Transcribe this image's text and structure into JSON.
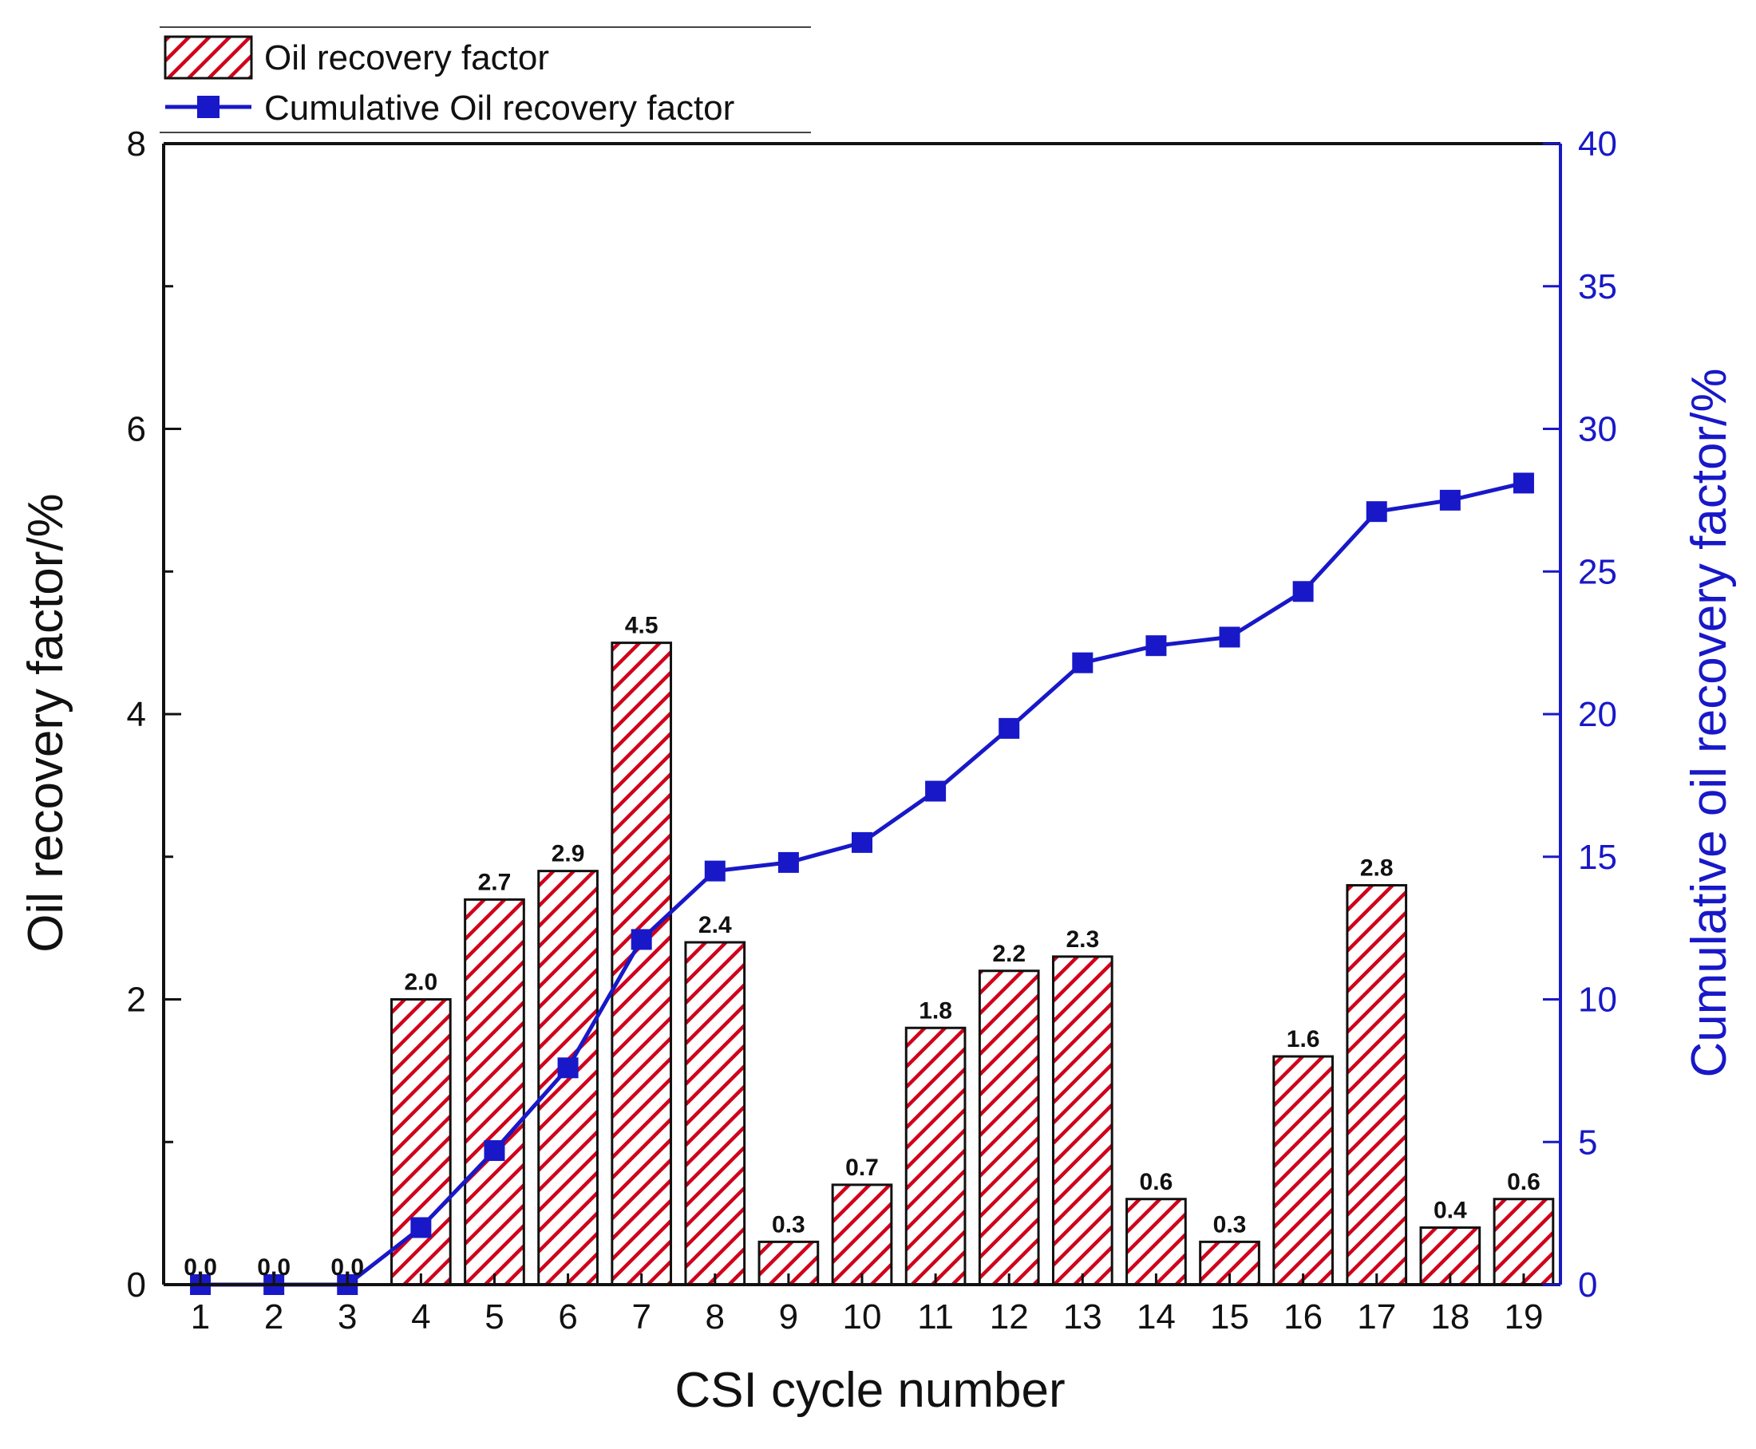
{
  "chart_data": {
    "type": "bar+line",
    "title": "",
    "xlabel": "CSI cycle number",
    "ylabel": "Oil recovery factor/%",
    "y2label": "Cumulative oil recovery factor/%",
    "categories": [
      "1",
      "2",
      "3",
      "4",
      "5",
      "6",
      "7",
      "8",
      "9",
      "10",
      "11",
      "12",
      "13",
      "14",
      "15",
      "16",
      "17",
      "18",
      "19"
    ],
    "ylim": [
      0,
      8
    ],
    "yticks": [
      0,
      2,
      4,
      6,
      8
    ],
    "y2lim": [
      0,
      40
    ],
    "y2ticks": [
      0,
      5,
      10,
      15,
      20,
      25,
      30,
      35,
      40
    ],
    "grid": false,
    "legend_position": "top-left, outside above plot",
    "series": [
      {
        "name": "Oil recovery factor",
        "kind": "bar",
        "axis": "left",
        "color": "#d0021b",
        "pattern": "diagonal-hatch",
        "values": [
          0.0,
          0.0,
          0.0,
          2.0,
          2.7,
          2.9,
          4.5,
          2.4,
          0.3,
          0.7,
          1.8,
          2.2,
          2.3,
          0.6,
          0.3,
          1.6,
          2.8,
          0.4,
          0.6
        ],
        "labels": [
          "0.0",
          "0.0",
          "0.0",
          "2.0",
          "2.7",
          "2.9",
          "4.5",
          "2.4",
          "0.3",
          "0.7",
          "1.8",
          "2.2",
          "2.3",
          "0.6",
          "0.3",
          "1.6",
          "2.8",
          "0.4",
          "0.6"
        ]
      },
      {
        "name": "Cumulative Oil recovery factor",
        "kind": "line",
        "marker": "square",
        "axis": "right",
        "color": "#1818c8",
        "values": [
          0.0,
          0.0,
          0.0,
          2.0,
          4.7,
          7.6,
          12.1,
          14.5,
          14.8,
          15.5,
          17.3,
          19.5,
          21.8,
          22.4,
          22.7,
          24.3,
          27.1,
          27.5,
          28.1
        ]
      }
    ]
  }
}
